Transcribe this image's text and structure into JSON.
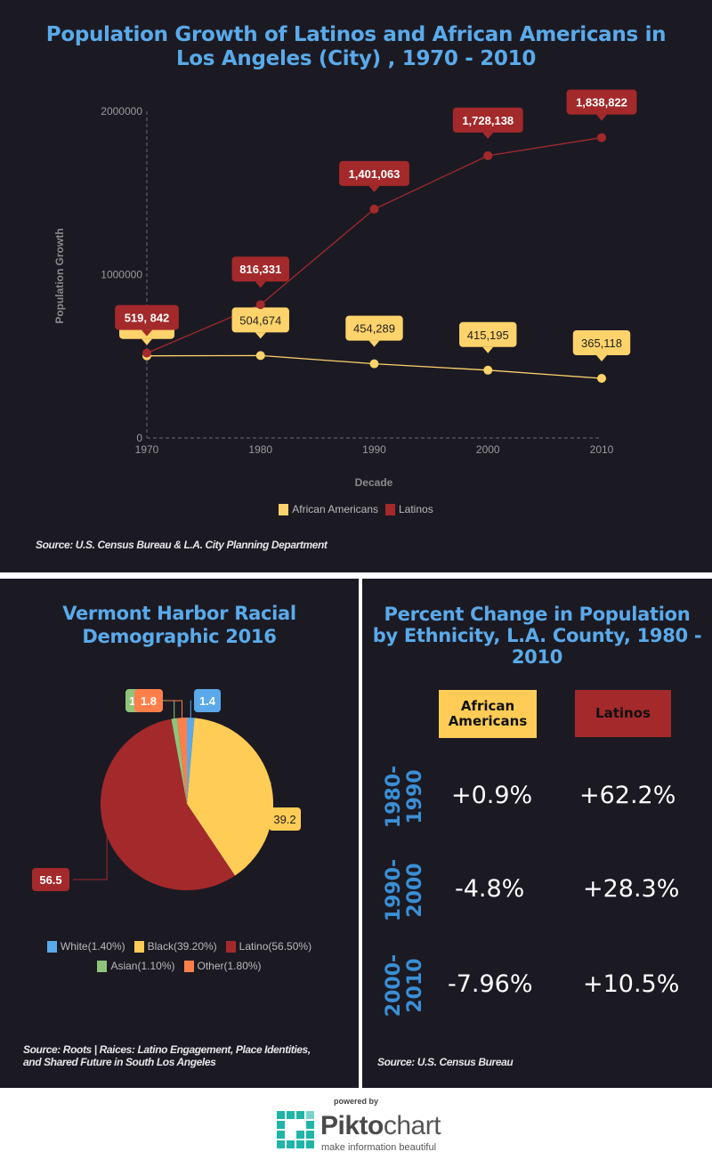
{
  "line_section": {
    "title": "Population Growth of Latinos and African Americans in Los Angeles (City) , 1970 - 2010",
    "source": "Source: U.S. Census Bureau & L.A. City Planning Department"
  },
  "pie_section": {
    "title": "Vermont Harbor Racial Demographic 2016",
    "source": "Source: Roots | Raices: Latino Engagement, Place Identities, and Shared Future in South Los Angeles"
  },
  "pct_section": {
    "title": "Percent Change in Population by Ethnicity, L.A. County, 1980 - 2010",
    "headers": [
      "African Americans",
      "Latinos"
    ],
    "header_colors": [
      "#ffcc55",
      "#a4292b"
    ],
    "rows": [
      {
        "period": "1980-\n1990",
        "african_americans": "+0.9%",
        "latinos": "+62.2%"
      },
      {
        "period": "1990-\n2000",
        "african_americans": "-4.8%",
        "latinos": "+28.3%"
      },
      {
        "period": "2000-\n2010",
        "african_americans": "-7.96%",
        "latinos": "+10.5%"
      }
    ],
    "source": "Source: U.S. Census Bureau"
  },
  "footer": {
    "powered_by": "powered by",
    "brand_bold": "Pikto",
    "brand_light": "chart",
    "tagline": "make information beautiful"
  },
  "chart_data": [
    {
      "type": "line",
      "title": "Population Growth of Latinos and African Americans in Los Angeles (City) , 1970 - 2010",
      "xlabel": "Decade",
      "ylabel": "Population Growth",
      "categories": [
        "1970",
        "1980",
        "1990",
        "2000",
        "2010"
      ],
      "ylim": [
        0,
        2000000
      ],
      "yticks": [
        "0",
        "1000000",
        "2000000"
      ],
      "legend_position": "bottom",
      "series": [
        {
          "name": "African Americans",
          "color": "#ffd36b",
          "values": [
            503000,
            504674,
            454289,
            415195,
            365118
          ],
          "labels": [
            "",
            "504,674",
            "454,289",
            "415,195",
            "365,118"
          ]
        },
        {
          "name": "Latinos",
          "color": "#a4292b",
          "values": [
            519842,
            816331,
            1401063,
            1728138,
            1838822
          ],
          "labels": [
            "519, 842",
            "816,331",
            "1,401,063",
            "1,728,138",
            "1,838,822"
          ]
        }
      ]
    },
    {
      "type": "pie",
      "title": "Vermont Harbor Racial Demographic 2016",
      "legend_position": "bottom",
      "slices": [
        {
          "name": "White",
          "value": 1.4,
          "legend": "White(1.40%)",
          "color": "#5aa9ea",
          "label": "1.4"
        },
        {
          "name": "Black",
          "value": 39.2,
          "legend": "Black(39.20%)",
          "color": "#ffcc55",
          "label": "39.2"
        },
        {
          "name": "Latino",
          "value": 56.5,
          "legend": "Latino(56.50%)",
          "color": "#a4292b",
          "label": "56.5"
        },
        {
          "name": "Asian",
          "value": 1.1,
          "legend": "Asian(1.10%)",
          "color": "#8fc47a",
          "label": "1.1"
        },
        {
          "name": "Other",
          "value": 1.8,
          "legend": "Other(1.80%)",
          "color": "#ff7f4a",
          "label": "1.8"
        }
      ]
    }
  ]
}
